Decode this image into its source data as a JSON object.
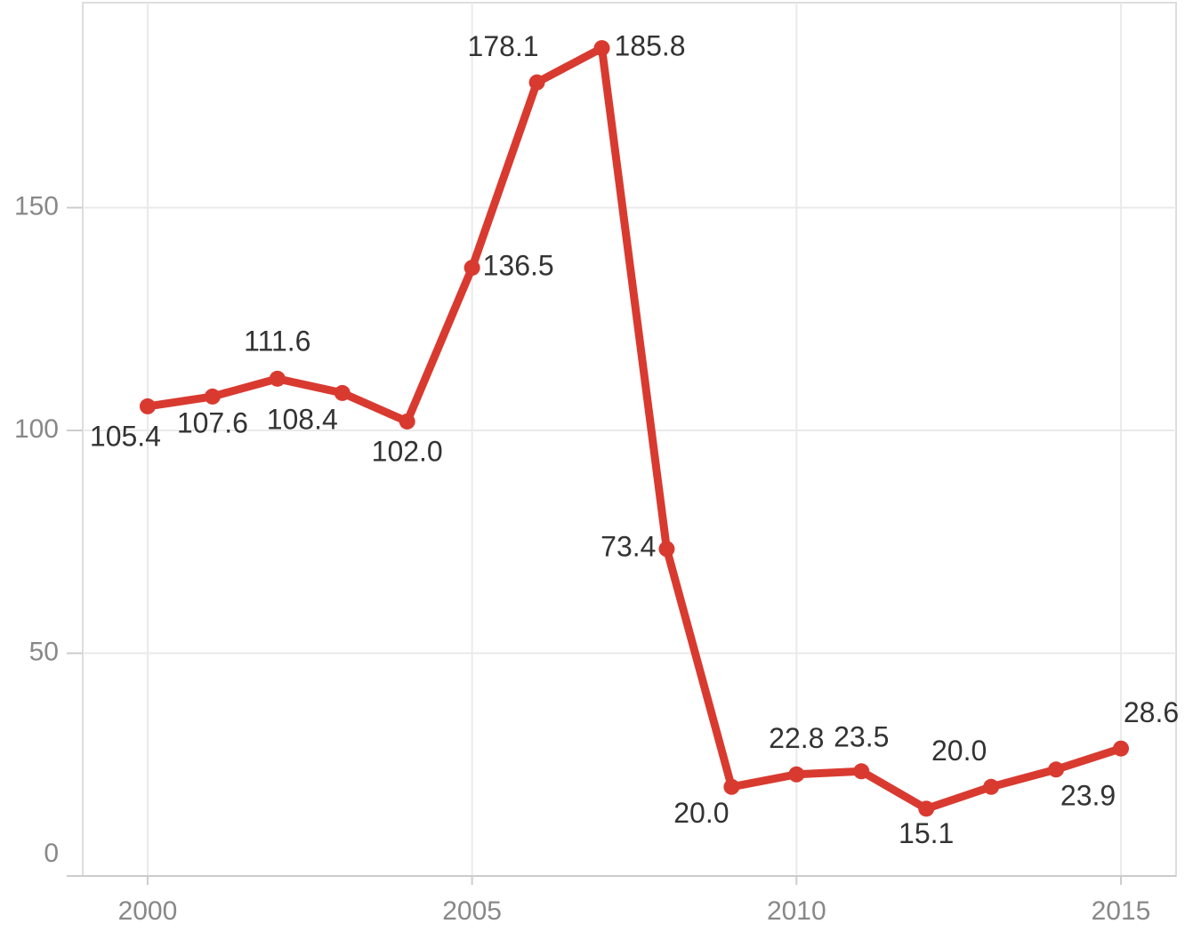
{
  "chart_data": {
    "type": "line",
    "x": [
      2000,
      2001,
      2002,
      2003,
      2004,
      2005,
      2006,
      2007,
      2008,
      2009,
      2010,
      2011,
      2012,
      2013,
      2014,
      2015
    ],
    "series": [
      {
        "color": "#d93a30",
        "values": [
          105.4,
          107.6,
          111.6,
          108.4,
          102.0,
          136.5,
          178.1,
          185.8,
          73.4,
          20.0,
          22.8,
          23.5,
          15.1,
          20.0,
          23.9,
          28.6
        ],
        "value_labels": [
          "105.4",
          "107.6",
          "111.6",
          "108.4",
          "102.0",
          "136.5",
          "178.1",
          "185.8",
          "73.4",
          "20.0",
          "22.8",
          "23.5",
          "15.1",
          "20.0",
          "23.9",
          "28.6"
        ]
      }
    ],
    "xlim": [
      1999,
      2015.85
    ],
    "ylim": [
      0,
      196
    ],
    "xticks": [
      2000,
      2005,
      2010,
      2015
    ],
    "yticks": [
      0,
      50,
      100,
      150
    ],
    "grid": true
  }
}
